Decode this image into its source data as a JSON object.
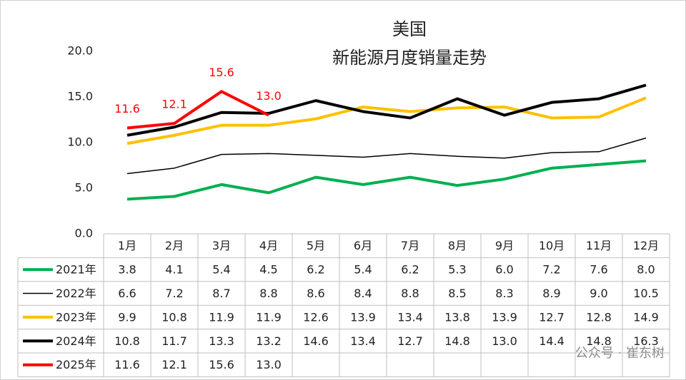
{
  "chart_data": {
    "type": "line",
    "title": "美国",
    "subtitle": "新能源月度销量走势",
    "watermark": "公众号 · 崔东树",
    "categories": [
      "1月",
      "2月",
      "3月",
      "4月",
      "5月",
      "6月",
      "7月",
      "8月",
      "9月",
      "10月",
      "11月",
      "12月"
    ],
    "ylim": [
      0,
      20
    ],
    "yticks": [
      {
        "value": 0,
        "label": "0.0"
      },
      {
        "value": 5,
        "label": "5.0"
      },
      {
        "value": 10,
        "label": "10.0"
      },
      {
        "value": 15,
        "label": "15.0"
      },
      {
        "value": 20,
        "label": "20.0"
      }
    ],
    "grid": false,
    "series": [
      {
        "name": "2021年",
        "color": "#00b050",
        "line_width": 4,
        "values": [
          3.8,
          4.1,
          5.4,
          4.5,
          6.2,
          5.4,
          6.2,
          5.3,
          6.0,
          7.2,
          7.6,
          8.0
        ],
        "value_labels": [
          "3.8",
          "4.1",
          "5.4",
          "4.5",
          "6.2",
          "5.4",
          "6.2",
          "5.3",
          "6.0",
          "7.2",
          "7.6",
          "8.0"
        ]
      },
      {
        "name": "2022年",
        "color": "#000000",
        "line_width": 1.5,
        "values": [
          6.6,
          7.2,
          8.7,
          8.8,
          8.6,
          8.4,
          8.8,
          8.5,
          8.3,
          8.9,
          9.0,
          10.5
        ],
        "value_labels": [
          "6.6",
          "7.2",
          "8.7",
          "8.8",
          "8.6",
          "8.4",
          "8.8",
          "8.5",
          "8.3",
          "8.9",
          "9.0",
          "10.5"
        ]
      },
      {
        "name": "2023年",
        "color": "#ffc000",
        "line_width": 4,
        "values": [
          9.9,
          10.8,
          11.9,
          11.9,
          12.6,
          13.9,
          13.4,
          13.8,
          13.9,
          12.7,
          12.8,
          14.9
        ],
        "value_labels": [
          "9.9",
          "10.8",
          "11.9",
          "11.9",
          "12.6",
          "13.9",
          "13.4",
          "13.8",
          "13.9",
          "12.7",
          "12.8",
          "14.9"
        ]
      },
      {
        "name": "2024年",
        "color": "#000000",
        "line_width": 4,
        "values": [
          10.8,
          11.7,
          13.3,
          13.2,
          14.6,
          13.4,
          12.7,
          14.8,
          13.0,
          14.4,
          14.8,
          16.3
        ],
        "value_labels": [
          "10.8",
          "11.7",
          "13.3",
          "13.2",
          "14.6",
          "13.4",
          "12.7",
          "14.8",
          "13.0",
          "14.4",
          "14.8",
          "16.3"
        ]
      },
      {
        "name": "2025年",
        "color": "#ff0000",
        "line_width": 4,
        "data_labels": true,
        "values": [
          11.6,
          12.1,
          15.6,
          13.0,
          null,
          null,
          null,
          null,
          null,
          null,
          null,
          null
        ],
        "value_labels": [
          "11.6",
          "12.1",
          "15.6",
          "13.0",
          null,
          null,
          null,
          null,
          null,
          null,
          null,
          null
        ]
      }
    ]
  }
}
